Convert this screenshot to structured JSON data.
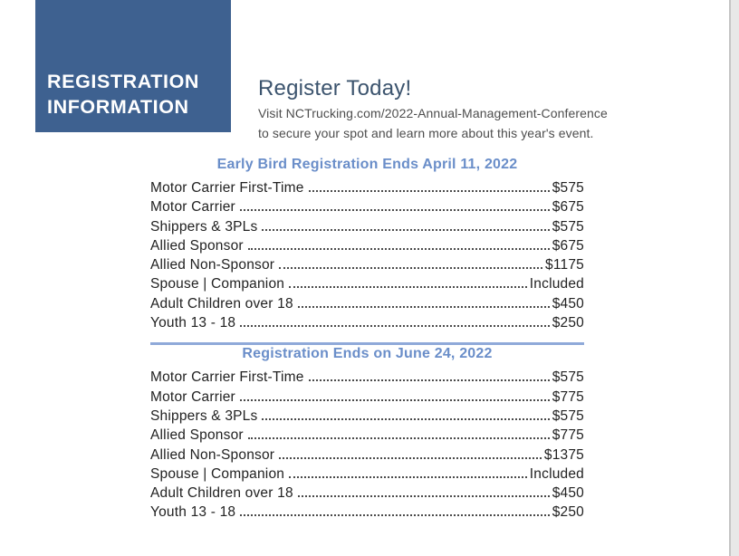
{
  "title_box": {
    "line1": "REGISTRATION",
    "line2": "INFORMATION"
  },
  "header": {
    "title": "Register Today!",
    "body_line1": "Visit NCTrucking.com/2022-Annual-Management-Conference",
    "body_line2": "to secure your spot and learn more about this year's event."
  },
  "sections": [
    {
      "heading": "Early Bird Registration Ends April 11, 2022",
      "rows": [
        {
          "label": "Motor Carrier First-Time",
          "value": "$575"
        },
        {
          "label": "Motor Carrier",
          "value": "$675"
        },
        {
          "label": "Shippers & 3PLs",
          "value": "$575"
        },
        {
          "label": "Allied Sponsor",
          "value": "$675"
        },
        {
          "label": "Allied Non-Sponsor",
          "value": "$1175"
        },
        {
          "label": "Spouse | Companion",
          "value": "Included"
        },
        {
          "label": "Adult Children over 18",
          "value": "$450"
        },
        {
          "label": "Youth 13 - 18",
          "value": "$250"
        }
      ]
    },
    {
      "heading": "Registration Ends on June 24, 2022",
      "rows": [
        {
          "label": "Motor Carrier First-Time",
          "value": "$575"
        },
        {
          "label": "Motor Carrier",
          "value": "$775"
        },
        {
          "label": "Shippers & 3PLs",
          "value": "$575"
        },
        {
          "label": "Allied Sponsor",
          "value": "$775"
        },
        {
          "label": "Allied Non-Sponsor",
          "value": "$1375"
        },
        {
          "label": "Spouse | Companion",
          "value": "Included"
        },
        {
          "label": "Adult Children over 18",
          "value": "$450"
        },
        {
          "label": "Youth 13 - 18",
          "value": "$250"
        }
      ]
    }
  ],
  "colors": {
    "box_blue": "#3E6190",
    "title_blue": "#3C546E",
    "heading_blue": "#6A8EC9",
    "body_gray": "#4D4D4D",
    "text_black": "#222222",
    "leader_gray": "#4A4A4A",
    "divider_blue": "#8FA9D9",
    "strip_bg": "#E8E8E8",
    "strip_line": "#C5C5C5"
  }
}
